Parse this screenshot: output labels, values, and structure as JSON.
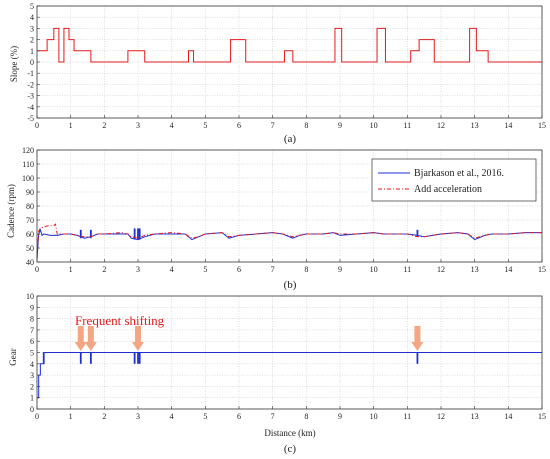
{
  "chart_data": [
    {
      "type": "line",
      "caption": "(a)",
      "xlabel": "",
      "ylabel": "Slope (%)",
      "xlim": [
        0,
        15
      ],
      "ylim": [
        -5,
        5
      ],
      "xticks": [
        0,
        1,
        2,
        3,
        4,
        5,
        6,
        7,
        8,
        9,
        10,
        11,
        12,
        13,
        14,
        15
      ],
      "yticks": [
        -5,
        -4,
        -3,
        -2,
        -1,
        0,
        1,
        2,
        3,
        4,
        5
      ],
      "grid": true,
      "series": [
        {
          "color": "#e31a1c",
          "style": "step",
          "x": [
            0,
            0.3,
            0.5,
            0.65,
            0.8,
            0.95,
            1.1,
            1.6,
            2.7,
            3.2,
            4.5,
            4.65,
            5.75,
            6.2,
            7.35,
            7.6,
            8.85,
            9.05,
            10.1,
            10.35,
            11.1,
            11.35,
            11.8,
            12.85,
            13.05,
            13.4,
            15
          ],
          "y": [
            1,
            2,
            3,
            0,
            3,
            2,
            1,
            0,
            1,
            0,
            1,
            0,
            2,
            0,
            1,
            0,
            3,
            0,
            3,
            0,
            1,
            2,
            0,
            3,
            1,
            0,
            0
          ]
        }
      ]
    },
    {
      "type": "line",
      "caption": "(b)",
      "xlabel": "",
      "ylabel": "Cadence (rpm)",
      "xlim": [
        0,
        15
      ],
      "ylim": [
        40,
        120
      ],
      "xticks": [
        0,
        1,
        2,
        3,
        4,
        5,
        6,
        7,
        8,
        9,
        10,
        11,
        12,
        13,
        14,
        15
      ],
      "yticks": [
        40,
        50,
        60,
        70,
        80,
        90,
        100,
        110,
        120
      ],
      "grid": true,
      "legend_position": "top-right",
      "series": [
        {
          "name": "Bjarkason et al., 2016.",
          "color": "#1f2fd6",
          "dash": "",
          "x": [
            0,
            0.05,
            0.1,
            0.15,
            0.2,
            0.4,
            0.6,
            0.8,
            1.0,
            1.2,
            1.3,
            1.4,
            1.6,
            1.8,
            2.0,
            2.5,
            2.7,
            2.8,
            3.0,
            3.2,
            3.5,
            4.0,
            4.4,
            4.6,
            4.8,
            5.0,
            5.5,
            5.7,
            6.0,
            6.5,
            7.0,
            7.3,
            7.6,
            7.8,
            8.0,
            8.5,
            8.8,
            9.0,
            9.5,
            10.0,
            10.3,
            10.5,
            11.0,
            11.3,
            11.5,
            12.0,
            12.5,
            12.8,
            13.0,
            13.3,
            13.5,
            14.0,
            14.5,
            15
          ],
          "y": [
            42,
            60,
            63,
            59,
            60,
            59,
            59,
            60,
            60,
            59,
            58,
            57,
            58,
            60,
            60,
            60,
            60,
            57,
            56,
            58,
            60,
            60,
            60,
            56,
            58,
            60,
            61,
            57,
            59,
            60,
            61,
            60,
            57,
            59,
            60,
            60,
            61,
            59,
            60,
            61,
            60,
            60,
            60,
            59,
            58,
            60,
            61,
            60,
            56,
            59,
            60,
            60,
            61,
            61
          ],
          "spikes": [
            {
              "x": 1.3,
              "y0": 57,
              "y1": 63
            },
            {
              "x": 1.6,
              "y0": 57,
              "y1": 63
            },
            {
              "x": 2.9,
              "y0": 56,
              "y1": 64
            },
            {
              "x": 3.0,
              "y0": 56,
              "y1": 64
            },
            {
              "x": 3.05,
              "y0": 56,
              "y1": 64
            },
            {
              "x": 11.3,
              "y0": 58,
              "y1": 63
            }
          ]
        },
        {
          "name": "Add acceleration",
          "color": "#e31a1c",
          "dash": "4,2,1,2",
          "x": [
            0,
            0.05,
            0.1,
            0.2,
            0.35,
            0.5,
            0.55,
            0.6,
            0.8,
            1.0,
            1.2,
            1.4,
            1.6,
            1.8,
            2.0,
            2.5,
            2.7,
            2.8,
            3.0,
            3.2,
            3.5,
            4.0,
            4.4,
            4.6,
            4.8,
            5.0,
            5.5,
            5.7,
            6.0,
            6.5,
            7.0,
            7.3,
            7.6,
            7.8,
            8.0,
            8.5,
            8.8,
            9.0,
            9.5,
            10.0,
            10.3,
            10.5,
            11.0,
            11.3,
            11.5,
            12.0,
            12.5,
            12.8,
            13.0,
            13.3,
            13.5,
            14.0,
            14.5,
            15
          ],
          "y": [
            42,
            62,
            64,
            65,
            66,
            66,
            67,
            60,
            60,
            60,
            59,
            58,
            58,
            60,
            60,
            61,
            60,
            58,
            57,
            59,
            60,
            61,
            60,
            57,
            58,
            60,
            61,
            58,
            59,
            60,
            61,
            60,
            58,
            59,
            60,
            60,
            61,
            60,
            60,
            61,
            60,
            60,
            60,
            58,
            58,
            60,
            61,
            60,
            57,
            59,
            60,
            60,
            61,
            61
          ]
        }
      ]
    },
    {
      "type": "line",
      "caption": "(c)",
      "xlabel": "Distance (km)",
      "ylabel": "Gear",
      "xlim": [
        0,
        15
      ],
      "ylim": [
        0,
        10
      ],
      "xticks": [
        0,
        1,
        2,
        3,
        4,
        5,
        6,
        7,
        8,
        9,
        10,
        11,
        12,
        13,
        14,
        15
      ],
      "yticks": [
        0,
        1,
        2,
        3,
        4,
        5,
        6,
        7,
        8,
        9,
        10
      ],
      "grid": true,
      "series": [
        {
          "color": "#1f2fd6",
          "style": "step",
          "x": [
            0,
            0.05,
            0.1,
            0.15,
            0.2,
            0.3,
            15
          ],
          "y": [
            1,
            3,
            4,
            4,
            5,
            5,
            5
          ],
          "spikes": [
            {
              "x": 0.2,
              "y0": 4,
              "y1": 5
            },
            {
              "x": 1.3,
              "y0": 4,
              "y1": 5
            },
            {
              "x": 1.6,
              "y0": 4,
              "y1": 5
            },
            {
              "x": 2.9,
              "y0": 4,
              "y1": 5
            },
            {
              "x": 3.0,
              "y0": 4,
              "y1": 5
            },
            {
              "x": 3.05,
              "y0": 4,
              "y1": 5
            },
            {
              "x": 11.3,
              "y0": 4,
              "y1": 5
            }
          ]
        }
      ],
      "annotation": {
        "text": "Frequent shifting",
        "color": "#e31a1c",
        "arrow_color": "#f4a582",
        "arrows_at_x": [
          1.3,
          1.6,
          3.0,
          11.3
        ]
      }
    }
  ]
}
